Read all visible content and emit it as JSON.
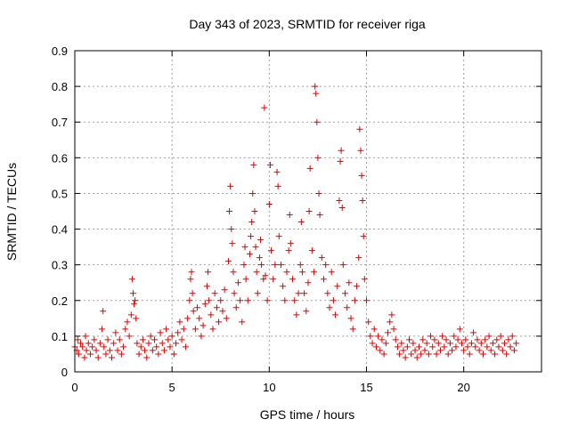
{
  "chart_data": {
    "type": "scatter",
    "title": "Day 343 of 2023, SRMTID for receiver riga",
    "xlabel": "GPS time / hours",
    "ylabel": "SRMTID / TECUs",
    "xlim": [
      0,
      24
    ],
    "ylim": [
      0,
      0.9
    ],
    "xticks": [
      0,
      5,
      10,
      15,
      20
    ],
    "yticks": [
      0,
      0.1,
      0.2,
      0.3,
      0.4,
      0.5,
      0.6,
      0.7,
      0.8,
      0.9
    ],
    "xtick_labels": [
      "0",
      "5",
      "10",
      "15",
      "20"
    ],
    "ytick_labels": [
      "0",
      "0.1",
      "0.2",
      "0.3",
      "0.4",
      "0.5",
      "0.6",
      "0.7",
      "0.8",
      "0.9"
    ],
    "grid": true,
    "marker": "+",
    "color": "#e00000",
    "series": [
      {
        "name": "SRMTID",
        "points": [
          [
            0.0,
            0.07
          ],
          [
            0.1,
            0.06
          ],
          [
            0.15,
            0.09
          ],
          [
            0.2,
            0.05
          ],
          [
            0.3,
            0.08
          ],
          [
            0.4,
            0.07
          ],
          [
            0.5,
            0.04
          ],
          [
            0.55,
            0.1
          ],
          [
            0.6,
            0.06
          ],
          [
            0.7,
            0.08
          ],
          [
            0.8,
            0.05
          ],
          [
            0.9,
            0.07
          ],
          [
            1.0,
            0.09
          ],
          [
            1.1,
            0.06
          ],
          [
            1.2,
            0.04
          ],
          [
            1.3,
            0.08
          ],
          [
            1.4,
            0.12
          ],
          [
            1.45,
            0.17
          ],
          [
            1.5,
            0.07
          ],
          [
            1.6,
            0.05
          ],
          [
            1.7,
            0.09
          ],
          [
            1.8,
            0.06
          ],
          [
            1.9,
            0.04
          ],
          [
            2.0,
            0.08
          ],
          [
            2.1,
            0.11
          ],
          [
            2.2,
            0.06
          ],
          [
            2.3,
            0.09
          ],
          [
            2.4,
            0.05
          ],
          [
            2.5,
            0.07
          ],
          [
            2.6,
            0.12
          ],
          [
            2.7,
            0.14
          ],
          [
            2.8,
            0.1
          ],
          [
            2.9,
            0.16
          ],
          [
            2.95,
            0.26
          ],
          [
            3.0,
            0.22
          ],
          [
            3.05,
            0.19
          ],
          [
            3.1,
            0.2
          ],
          [
            3.15,
            0.15
          ],
          [
            3.2,
            0.08
          ],
          [
            3.3,
            0.05
          ],
          [
            3.4,
            0.07
          ],
          [
            3.5,
            0.09
          ],
          [
            3.6,
            0.06
          ],
          [
            3.7,
            0.04
          ],
          [
            3.8,
            0.08
          ],
          [
            3.9,
            0.1
          ],
          [
            4.0,
            0.06
          ],
          [
            4.1,
            0.09
          ],
          [
            4.2,
            0.07
          ],
          [
            4.3,
            0.05
          ],
          [
            4.4,
            0.11
          ],
          [
            4.5,
            0.08
          ],
          [
            4.6,
            0.06
          ],
          [
            4.7,
            0.12
          ],
          [
            4.8,
            0.09
          ],
          [
            4.9,
            0.07
          ],
          [
            5.0,
            0.1
          ],
          [
            5.1,
            0.05
          ],
          [
            5.2,
            0.08
          ],
          [
            5.3,
            0.11
          ],
          [
            5.4,
            0.14
          ],
          [
            5.5,
            0.09
          ],
          [
            5.6,
            0.12
          ],
          [
            5.7,
            0.07
          ],
          [
            5.8,
            0.15
          ],
          [
            5.9,
            0.2
          ],
          [
            5.95,
            0.26
          ],
          [
            6.0,
            0.28
          ],
          [
            6.05,
            0.22
          ],
          [
            6.1,
            0.17
          ],
          [
            6.2,
            0.12
          ],
          [
            6.3,
            0.18
          ],
          [
            6.4,
            0.15
          ],
          [
            6.5,
            0.1
          ],
          [
            6.6,
            0.13
          ],
          [
            6.7,
            0.19
          ],
          [
            6.8,
            0.24
          ],
          [
            6.85,
            0.28
          ],
          [
            6.9,
            0.2
          ],
          [
            7.0,
            0.16
          ],
          [
            7.1,
            0.12
          ],
          [
            7.2,
            0.22
          ],
          [
            7.3,
            0.18
          ],
          [
            7.4,
            0.14
          ],
          [
            7.5,
            0.2
          ],
          [
            7.6,
            0.17
          ],
          [
            7.7,
            0.23
          ],
          [
            7.8,
            0.15
          ],
          [
            7.9,
            0.31
          ],
          [
            7.95,
            0.45
          ],
          [
            8.0,
            0.52
          ],
          [
            8.05,
            0.4
          ],
          [
            8.1,
            0.36
          ],
          [
            8.15,
            0.28
          ],
          [
            8.2,
            0.22
          ],
          [
            8.3,
            0.18
          ],
          [
            8.4,
            0.25
          ],
          [
            8.5,
            0.2
          ],
          [
            8.6,
            0.14
          ],
          [
            8.7,
            0.3
          ],
          [
            8.75,
            0.35
          ],
          [
            8.8,
            0.26
          ],
          [
            8.9,
            0.2
          ],
          [
            9.0,
            0.33
          ],
          [
            9.05,
            0.38
          ],
          [
            9.1,
            0.42
          ],
          [
            9.15,
            0.5
          ],
          [
            9.2,
            0.58
          ],
          [
            9.25,
            0.45
          ],
          [
            9.3,
            0.35
          ],
          [
            9.35,
            0.28
          ],
          [
            9.4,
            0.22
          ],
          [
            9.5,
            0.32
          ],
          [
            9.55,
            0.37
          ],
          [
            9.6,
            0.3
          ],
          [
            9.7,
            0.26
          ],
          [
            9.75,
            0.74
          ],
          [
            9.8,
            0.27
          ],
          [
            9.9,
            0.2
          ],
          [
            10.0,
            0.47
          ],
          [
            10.05,
            0.58
          ],
          [
            10.1,
            0.34
          ],
          [
            10.2,
            0.26
          ],
          [
            10.3,
            0.3
          ],
          [
            10.4,
            0.56
          ],
          [
            10.45,
            0.52
          ],
          [
            10.5,
            0.38
          ],
          [
            10.6,
            0.3
          ],
          [
            10.7,
            0.24
          ],
          [
            10.8,
            0.2
          ],
          [
            10.9,
            0.28
          ],
          [
            11.0,
            0.34
          ],
          [
            11.05,
            0.44
          ],
          [
            11.1,
            0.36
          ],
          [
            11.2,
            0.26
          ],
          [
            11.3,
            0.2
          ],
          [
            11.4,
            0.16
          ],
          [
            11.5,
            0.22
          ],
          [
            11.6,
            0.3
          ],
          [
            11.65,
            0.42
          ],
          [
            11.7,
            0.28
          ],
          [
            11.8,
            0.22
          ],
          [
            11.9,
            0.17
          ],
          [
            12.0,
            0.25
          ],
          [
            12.05,
            0.45
          ],
          [
            12.1,
            0.57
          ],
          [
            12.2,
            0.34
          ],
          [
            12.3,
            0.28
          ],
          [
            12.35,
            0.8
          ],
          [
            12.4,
            0.78
          ],
          [
            12.45,
            0.7
          ],
          [
            12.5,
            0.6
          ],
          [
            12.55,
            0.5
          ],
          [
            12.6,
            0.44
          ],
          [
            12.7,
            0.32
          ],
          [
            12.8,
            0.26
          ],
          [
            12.9,
            0.3
          ],
          [
            13.0,
            0.22
          ],
          [
            13.1,
            0.18
          ],
          [
            13.2,
            0.28
          ],
          [
            13.3,
            0.2
          ],
          [
            13.4,
            0.16
          ],
          [
            13.5,
            0.24
          ],
          [
            13.6,
            0.48
          ],
          [
            13.65,
            0.59
          ],
          [
            13.7,
            0.62
          ],
          [
            13.75,
            0.46
          ],
          [
            13.8,
            0.3
          ],
          [
            13.9,
            0.22
          ],
          [
            14.0,
            0.18
          ],
          [
            14.1,
            0.25
          ],
          [
            14.2,
            0.15
          ],
          [
            14.3,
            0.12
          ],
          [
            14.4,
            0.2
          ],
          [
            14.5,
            0.24
          ],
          [
            14.6,
            0.32
          ],
          [
            14.65,
            0.68
          ],
          [
            14.7,
            0.62
          ],
          [
            14.75,
            0.55
          ],
          [
            14.8,
            0.48
          ],
          [
            14.85,
            0.38
          ],
          [
            14.9,
            0.26
          ],
          [
            15.0,
            0.2
          ],
          [
            15.1,
            0.14
          ],
          [
            15.2,
            0.1
          ],
          [
            15.3,
            0.08
          ],
          [
            15.4,
            0.12
          ],
          [
            15.5,
            0.07
          ],
          [
            15.6,
            0.1
          ],
          [
            15.7,
            0.06
          ],
          [
            15.8,
            0.09
          ],
          [
            15.9,
            0.05
          ],
          [
            16.0,
            0.08
          ],
          [
            16.1,
            0.11
          ],
          [
            16.2,
            0.14
          ],
          [
            16.3,
            0.16
          ],
          [
            16.4,
            0.12
          ],
          [
            16.5,
            0.09
          ],
          [
            16.6,
            0.07
          ],
          [
            16.7,
            0.05
          ],
          [
            16.8,
            0.08
          ],
          [
            16.9,
            0.06
          ],
          [
            17.0,
            0.04
          ],
          [
            17.1,
            0.07
          ],
          [
            17.2,
            0.09
          ],
          [
            17.3,
            0.05
          ],
          [
            17.4,
            0.08
          ],
          [
            17.5,
            0.06
          ],
          [
            17.6,
            0.04
          ],
          [
            17.7,
            0.07
          ],
          [
            17.8,
            0.05
          ],
          [
            17.9,
            0.09
          ],
          [
            18.0,
            0.06
          ],
          [
            18.1,
            0.08
          ],
          [
            18.2,
            0.05
          ],
          [
            18.3,
            0.1
          ],
          [
            18.4,
            0.07
          ],
          [
            18.5,
            0.09
          ],
          [
            18.6,
            0.05
          ],
          [
            18.7,
            0.08
          ],
          [
            18.8,
            0.06
          ],
          [
            18.9,
            0.1
          ],
          [
            19.0,
            0.07
          ],
          [
            19.1,
            0.09
          ],
          [
            19.2,
            0.05
          ],
          [
            19.3,
            0.08
          ],
          [
            19.4,
            0.06
          ],
          [
            19.5,
            0.1
          ],
          [
            19.6,
            0.07
          ],
          [
            19.7,
            0.09
          ],
          [
            19.8,
            0.12
          ],
          [
            19.9,
            0.08
          ],
          [
            20.0,
            0.06
          ],
          [
            20.1,
            0.09
          ],
          [
            20.2,
            0.07
          ],
          [
            20.3,
            0.05
          ],
          [
            20.4,
            0.08
          ],
          [
            20.5,
            0.11
          ],
          [
            20.6,
            0.07
          ],
          [
            20.7,
            0.09
          ],
          [
            20.8,
            0.06
          ],
          [
            20.9,
            0.08
          ],
          [
            21.0,
            0.05
          ],
          [
            21.1,
            0.09
          ],
          [
            21.2,
            0.07
          ],
          [
            21.3,
            0.1
          ],
          [
            21.4,
            0.06
          ],
          [
            21.5,
            0.08
          ],
          [
            21.6,
            0.05
          ],
          [
            21.7,
            0.09
          ],
          [
            21.8,
            0.07
          ],
          [
            21.9,
            0.1
          ],
          [
            22.0,
            0.06
          ],
          [
            22.1,
            0.08
          ],
          [
            22.2,
            0.05
          ],
          [
            22.3,
            0.09
          ],
          [
            22.4,
            0.07
          ],
          [
            22.5,
            0.1
          ],
          [
            22.6,
            0.06
          ],
          [
            22.7,
            0.08
          ]
        ]
      }
    ]
  }
}
